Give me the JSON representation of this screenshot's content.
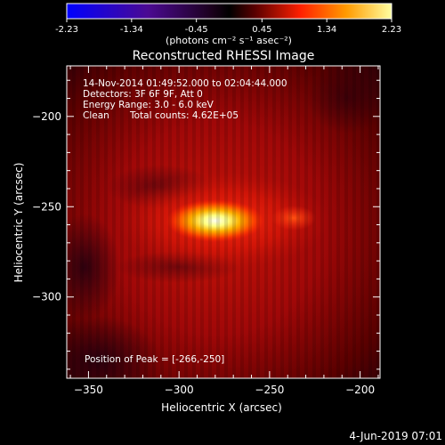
{
  "colorbar": {
    "ticks": [
      "-2.23",
      "-1.34",
      "-0.45",
      "0.45",
      "1.34",
      "2.23"
    ],
    "range": [
      -2.23,
      2.23
    ],
    "unit_label": "(photons cm⁻² s⁻¹ asec⁻²)"
  },
  "info": {
    "line1": "14-Nov-2014 01:49:52.000 to 02:04:44.000",
    "line2": "Detectors: 3F 6F 9F, Att 0",
    "line3": "Energy Range: 3.0 - 6.0 keV",
    "line4a": "Clean",
    "line4b": "Total counts: 4.62E+05",
    "peak": "Position of Peak = [-266,-250]"
  },
  "footer": {
    "date": "4-Jun-2019 07:01"
  },
  "chart_data": {
    "type": "heatmap",
    "title": "Reconstructed RHESSI Image",
    "xlabel": "Heliocentric X (arcsec)",
    "ylabel": "Heliocentric Y (arcsec)",
    "xlim": [
      -362,
      -189
    ],
    "ylim": [
      -345,
      -172
    ],
    "xticks": [
      -350,
      -300,
      -250,
      -200
    ],
    "yticks": [
      -200,
      -250,
      -300
    ],
    "peak": {
      "x": -266,
      "y": -250
    },
    "colormap": "blue-white-red-yellow (symmetric)",
    "grid": false
  }
}
